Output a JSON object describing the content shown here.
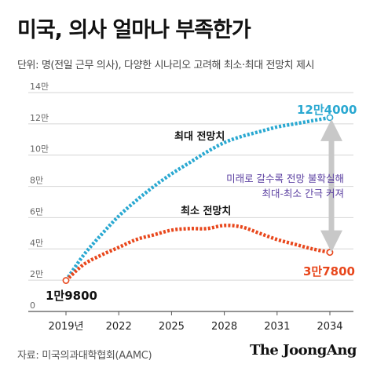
{
  "title": "미국, 의사 얼마나 부족한가",
  "subtitle": "단위: 명(전일 근무 의사), 다양한 시나리오 고려해 최소·최대 전망치 제시",
  "source": "자료: 미국의과대학협회(AAMC)",
  "brand": "The JoongAng",
  "colors": {
    "max_series": "#29a8d1",
    "min_series": "#e8471c",
    "annotation": "#5a3ea0",
    "arrow": "#c8c8c8"
  },
  "chart_data": {
    "type": "line",
    "x": [
      2019,
      2020,
      2021,
      2022,
      2023,
      2024,
      2025,
      2026,
      2027,
      2028,
      2029,
      2030,
      2031,
      2032,
      2033,
      2034
    ],
    "xticks": [
      2019,
      2022,
      2025,
      2028,
      2031,
      2034
    ],
    "xtick_labels": [
      "2019년",
      "2022",
      "2025",
      "2028",
      "2031",
      "2034"
    ],
    "ylim": [
      0,
      14
    ],
    "yticks": [
      0,
      2,
      4,
      6,
      8,
      10,
      12,
      14
    ],
    "ytick_labels": [
      "0",
      "2만",
      "4만",
      "6만",
      "8만",
      "10만",
      "12만",
      "14만"
    ],
    "series": [
      {
        "name": "최대 전망치",
        "key": "max",
        "values": [
          1.98,
          3.6,
          4.9,
          6.1,
          7.1,
          8.0,
          8.8,
          9.5,
          10.2,
          10.8,
          11.2,
          11.5,
          11.8,
          12.0,
          12.2,
          12.4
        ]
      },
      {
        "name": "최소 전망치",
        "key": "min",
        "values": [
          1.98,
          3.0,
          3.6,
          4.1,
          4.6,
          4.9,
          5.2,
          5.3,
          5.3,
          5.5,
          5.4,
          5.0,
          4.6,
          4.3,
          4.0,
          3.78
        ]
      }
    ],
    "data_labels": {
      "start": "1만9800",
      "max_end": "12만4000",
      "min_end": "3만7800"
    },
    "annotation": [
      "미래로 갈수록 전망 불확실해",
      "최대-최소 간극 커져"
    ],
    "grid": true,
    "legend": "inline labels"
  }
}
